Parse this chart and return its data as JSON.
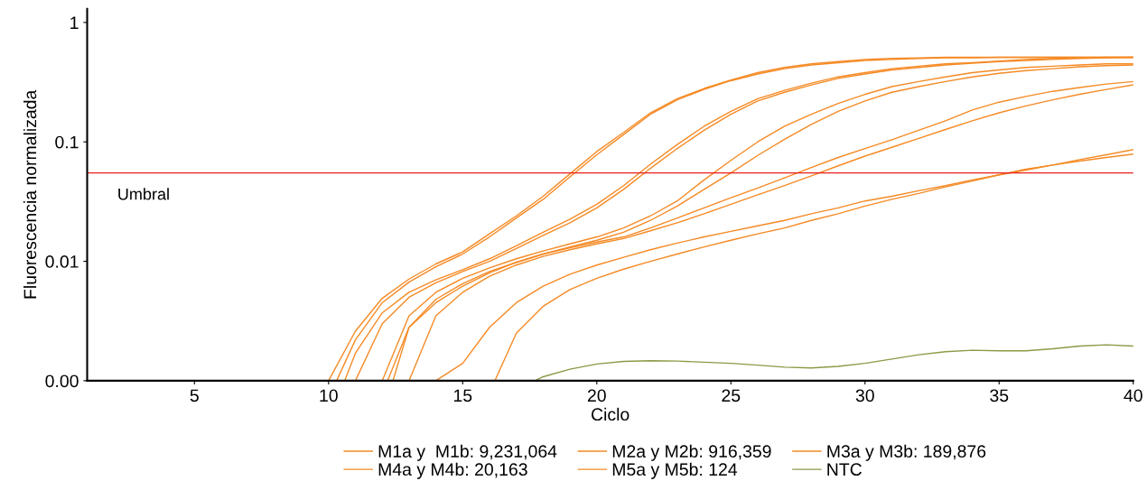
{
  "chart_data": {
    "type": "line",
    "xlabel": "Ciclo",
    "ylabel": "Fluorescencia normalizada",
    "log": "y",
    "xlim": [
      1,
      40
    ],
    "xticks": [
      5,
      10,
      15,
      20,
      25,
      30,
      35,
      40
    ],
    "ylim": [
      0.001,
      1.3
    ],
    "yticks": [
      {
        "value": 0.001,
        "label": "0.00"
      },
      {
        "value": 0.01,
        "label": "0.01"
      },
      {
        "value": 0.1,
        "label": "0.1"
      },
      {
        "value": 1,
        "label": "1"
      }
    ],
    "grid": false,
    "legend": "bottom",
    "marker": "none",
    "line_style": "solid",
    "ref_lines": [
      {
        "axis": "y",
        "value": 0.055,
        "label": "Umbral",
        "color": "#e8201e"
      }
    ],
    "series": [
      {
        "name": "M1a y  M1b: 9,231,064",
        "color": "#f58a25",
        "x": [
          10,
          11,
          12,
          13,
          14,
          15,
          16,
          17,
          18,
          19,
          20,
          21,
          22,
          23,
          24,
          25,
          26,
          27,
          28,
          29,
          30,
          31,
          32,
          33,
          34,
          35,
          36,
          37,
          38,
          39,
          40
        ],
        "values": [
          0.001,
          0.0026,
          0.0049,
          0.0071,
          0.0095,
          0.012,
          0.017,
          0.024,
          0.035,
          0.054,
          0.083,
          0.12,
          0.175,
          0.23,
          0.28,
          0.33,
          0.38,
          0.42,
          0.45,
          0.47,
          0.49,
          0.5,
          0.505,
          0.51,
          0.51,
          0.51,
          0.51,
          0.51,
          0.51,
          0.51,
          0.51
        ]
      },
      {
        "color": "#f58a25",
        "x": [
          10.3,
          11,
          12,
          13,
          14,
          15,
          16,
          17,
          18,
          19,
          20,
          21,
          22,
          23,
          24,
          25,
          26,
          27,
          28,
          29,
          30,
          31,
          32,
          33,
          34,
          35,
          36,
          37,
          38,
          39,
          40
        ],
        "values": [
          0.001,
          0.0022,
          0.0045,
          0.0067,
          0.009,
          0.0115,
          0.016,
          0.023,
          0.033,
          0.051,
          0.078,
          0.115,
          0.17,
          0.225,
          0.275,
          0.325,
          0.37,
          0.41,
          0.44,
          0.46,
          0.48,
          0.49,
          0.5,
          0.505,
          0.505,
          0.51,
          0.51,
          0.51,
          0.51,
          0.51,
          0.51
        ]
      },
      {
        "name": "M2a y M2b: 916,359",
        "color": "#f58a25",
        "x": [
          10.6,
          11,
          12,
          13,
          14,
          15,
          16,
          17,
          18,
          19,
          20,
          21,
          22,
          23,
          24,
          25,
          26,
          27,
          28,
          29,
          30,
          31,
          32,
          33,
          34,
          35,
          36,
          37,
          38,
          39,
          40
        ],
        "values": [
          0.001,
          0.0017,
          0.0037,
          0.0055,
          0.007,
          0.0085,
          0.0105,
          0.0135,
          0.0175,
          0.0225,
          0.03,
          0.043,
          0.065,
          0.095,
          0.135,
          0.18,
          0.23,
          0.27,
          0.31,
          0.35,
          0.38,
          0.41,
          0.43,
          0.45,
          0.46,
          0.475,
          0.49,
          0.5,
          0.505,
          0.51,
          0.51
        ]
      },
      {
        "color": "#f58a25",
        "x": [
          11,
          12,
          13,
          14,
          15,
          16,
          17,
          18,
          19,
          20,
          21,
          22,
          23,
          24,
          25,
          26,
          27,
          28,
          29,
          30,
          31,
          32,
          33,
          34,
          35,
          36,
          37,
          38,
          39,
          40
        ],
        "values": [
          0.001,
          0.003,
          0.005,
          0.0066,
          0.0082,
          0.01,
          0.0128,
          0.0165,
          0.021,
          0.028,
          0.04,
          0.06,
          0.088,
          0.125,
          0.17,
          0.22,
          0.26,
          0.3,
          0.34,
          0.37,
          0.4,
          0.42,
          0.44,
          0.455,
          0.47,
          0.48,
          0.49,
          0.5,
          0.505,
          0.51
        ]
      },
      {
        "name": "M3a y M3b: 189,876",
        "color": "#f58a25",
        "x": [
          12,
          13,
          14,
          15,
          16,
          17,
          18,
          19,
          20,
          21,
          22,
          23,
          24,
          25,
          26,
          27,
          28,
          29,
          30,
          31,
          32,
          33,
          34,
          35,
          36,
          37,
          38,
          39,
          40
        ],
        "values": [
          0.001,
          0.0035,
          0.0055,
          0.0072,
          0.0088,
          0.0105,
          0.0122,
          0.014,
          0.016,
          0.019,
          0.024,
          0.032,
          0.048,
          0.07,
          0.1,
          0.135,
          0.17,
          0.21,
          0.25,
          0.29,
          0.32,
          0.35,
          0.38,
          0.4,
          0.42,
          0.43,
          0.44,
          0.45,
          0.45
        ]
      },
      {
        "color": "#f58a25",
        "x": [
          12.4,
          13,
          14,
          15,
          16,
          17,
          18,
          19,
          20,
          21,
          22,
          23,
          24,
          25,
          26,
          27,
          28,
          29,
          30,
          31,
          32,
          33,
          34,
          35,
          36,
          37,
          38,
          39,
          40
        ],
        "values": [
          0.001,
          0.0028,
          0.0048,
          0.0065,
          0.0082,
          0.0098,
          0.0115,
          0.0132,
          0.015,
          0.0175,
          0.022,
          0.029,
          0.04,
          0.055,
          0.077,
          0.105,
          0.14,
          0.18,
          0.22,
          0.26,
          0.29,
          0.32,
          0.35,
          0.375,
          0.395,
          0.41,
          0.425,
          0.435,
          0.44
        ]
      },
      {
        "name": "M4a y M4b: 20,163",
        "color": "#f58a25",
        "x": [
          12.2,
          13,
          14,
          15,
          16,
          17,
          18,
          19,
          20,
          21,
          22,
          23,
          24,
          25,
          26,
          27,
          28,
          29,
          30,
          31,
          32,
          33,
          34,
          35,
          36,
          37,
          38,
          39,
          40
        ],
        "values": [
          0.001,
          0.0028,
          0.0045,
          0.0062,
          0.008,
          0.0098,
          0.0115,
          0.013,
          0.0145,
          0.016,
          0.019,
          0.023,
          0.028,
          0.034,
          0.041,
          0.05,
          0.061,
          0.074,
          0.088,
          0.104,
          0.125,
          0.15,
          0.185,
          0.215,
          0.24,
          0.265,
          0.285,
          0.305,
          0.32
        ]
      },
      {
        "color": "#f58a25",
        "x": [
          13,
          14,
          15,
          16,
          17,
          18,
          19,
          20,
          21,
          22,
          23,
          24,
          25,
          26,
          27,
          28,
          29,
          30,
          31,
          32,
          33,
          34,
          35,
          36,
          37,
          38,
          39,
          40
        ],
        "values": [
          0.001,
          0.0035,
          0.0055,
          0.0075,
          0.0093,
          0.011,
          0.0125,
          0.014,
          0.0155,
          0.018,
          0.021,
          0.025,
          0.03,
          0.036,
          0.043,
          0.052,
          0.063,
          0.076,
          0.09,
          0.107,
          0.127,
          0.15,
          0.175,
          0.2,
          0.225,
          0.25,
          0.275,
          0.3
        ]
      },
      {
        "name": "M5a y M5b: 124",
        "color": "#f58a25",
        "x": [
          14,
          15,
          16,
          17,
          18,
          19,
          20,
          21,
          22,
          23,
          24,
          25,
          26,
          27,
          28,
          29,
          30,
          31,
          32,
          33,
          34,
          35,
          36,
          37,
          38,
          39,
          40
        ],
        "values": [
          0.001,
          0.0014,
          0.0028,
          0.0045,
          0.0062,
          0.0078,
          0.0093,
          0.0108,
          0.0125,
          0.0142,
          0.016,
          0.0178,
          0.0198,
          0.022,
          0.025,
          0.028,
          0.032,
          0.035,
          0.039,
          0.043,
          0.048,
          0.053,
          0.058,
          0.064,
          0.071,
          0.078,
          0.086
        ]
      },
      {
        "color": "#f58a25",
        "x": [
          16.2,
          17,
          18,
          19,
          20,
          21,
          22,
          23,
          24,
          25,
          26,
          27,
          28,
          29,
          30,
          31,
          32,
          33,
          34,
          35,
          36,
          37,
          38,
          39,
          40
        ],
        "values": [
          0.001,
          0.0025,
          0.0042,
          0.0058,
          0.0072,
          0.0086,
          0.01,
          0.0115,
          0.0132,
          0.015,
          0.017,
          0.019,
          0.022,
          0.025,
          0.029,
          0.033,
          0.037,
          0.042,
          0.047,
          0.053,
          0.059,
          0.064,
          0.069,
          0.074,
          0.079
        ]
      },
      {
        "name": "NTC",
        "color": "#8b9a46",
        "x": [
          17.7,
          18,
          19,
          20,
          21,
          22,
          23,
          24,
          25,
          26,
          27,
          28,
          29,
          30,
          31,
          32,
          33,
          34,
          35,
          36,
          37,
          38,
          39,
          40
        ],
        "values": [
          0.001,
          0.00108,
          0.00125,
          0.00138,
          0.00145,
          0.00147,
          0.00146,
          0.00143,
          0.0014,
          0.00135,
          0.0013,
          0.00128,
          0.00132,
          0.0014,
          0.00152,
          0.00165,
          0.00175,
          0.0018,
          0.00178,
          0.00178,
          0.00185,
          0.00195,
          0.002,
          0.00195
        ]
      }
    ]
  }
}
